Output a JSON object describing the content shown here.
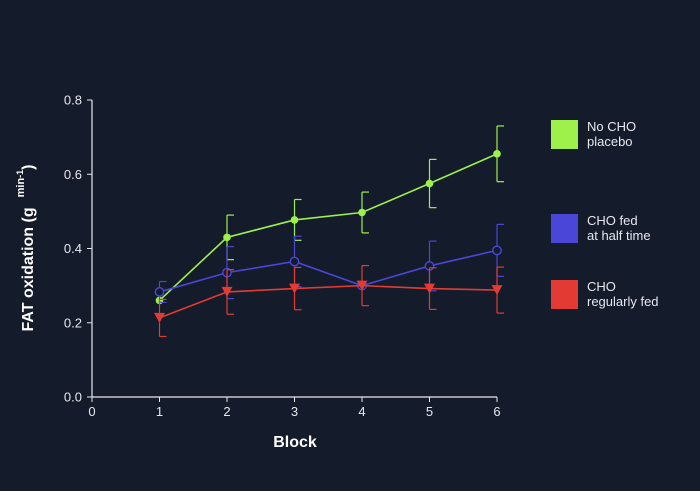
{
  "chart_data": {
    "type": "line",
    "xlabel": "Block",
    "ylabel": {
      "main": "FAT oxidation (g",
      "unit": "min",
      "exp": "-1",
      "close": ")"
    },
    "xlim": [
      0,
      6
    ],
    "ylim": [
      0.0,
      0.8
    ],
    "xticks": [
      "0",
      "1",
      "2",
      "3",
      "4",
      "5",
      "6"
    ],
    "yticks": [
      "0.0",
      "0.2",
      "0.4",
      "0.6",
      "0.8"
    ],
    "x": [
      1,
      2,
      3,
      4,
      5,
      6
    ],
    "legend_position": "right",
    "grid": false,
    "series": [
      {
        "name": [
          "No CHO",
          "placebo"
        ],
        "color": "#9ef04a",
        "marker": "filled-circle",
        "values": [
          0.26,
          0.43,
          0.477,
          0.497,
          0.575,
          0.655
        ],
        "error": [
          0.0,
          0.06,
          0.055,
          0.055,
          0.065,
          0.075
        ]
      },
      {
        "name": [
          "CHO fed",
          "at half time"
        ],
        "color": "#4a47d8",
        "marker": "open-circle",
        "values": [
          0.283,
          0.335,
          0.365,
          0.3,
          0.353,
          0.395
        ],
        "error": [
          0.028,
          0.07,
          0.068,
          0.0,
          0.067,
          0.07
        ]
      },
      {
        "name": [
          "CHO",
          "regularly fed"
        ],
        "color": "#e33b33",
        "marker": "triangle-down",
        "values": [
          0.213,
          0.283,
          0.292,
          0.3,
          0.292,
          0.288
        ],
        "error": [
          0.05,
          0.06,
          0.057,
          0.054,
          0.056,
          0.062
        ]
      }
    ]
  }
}
